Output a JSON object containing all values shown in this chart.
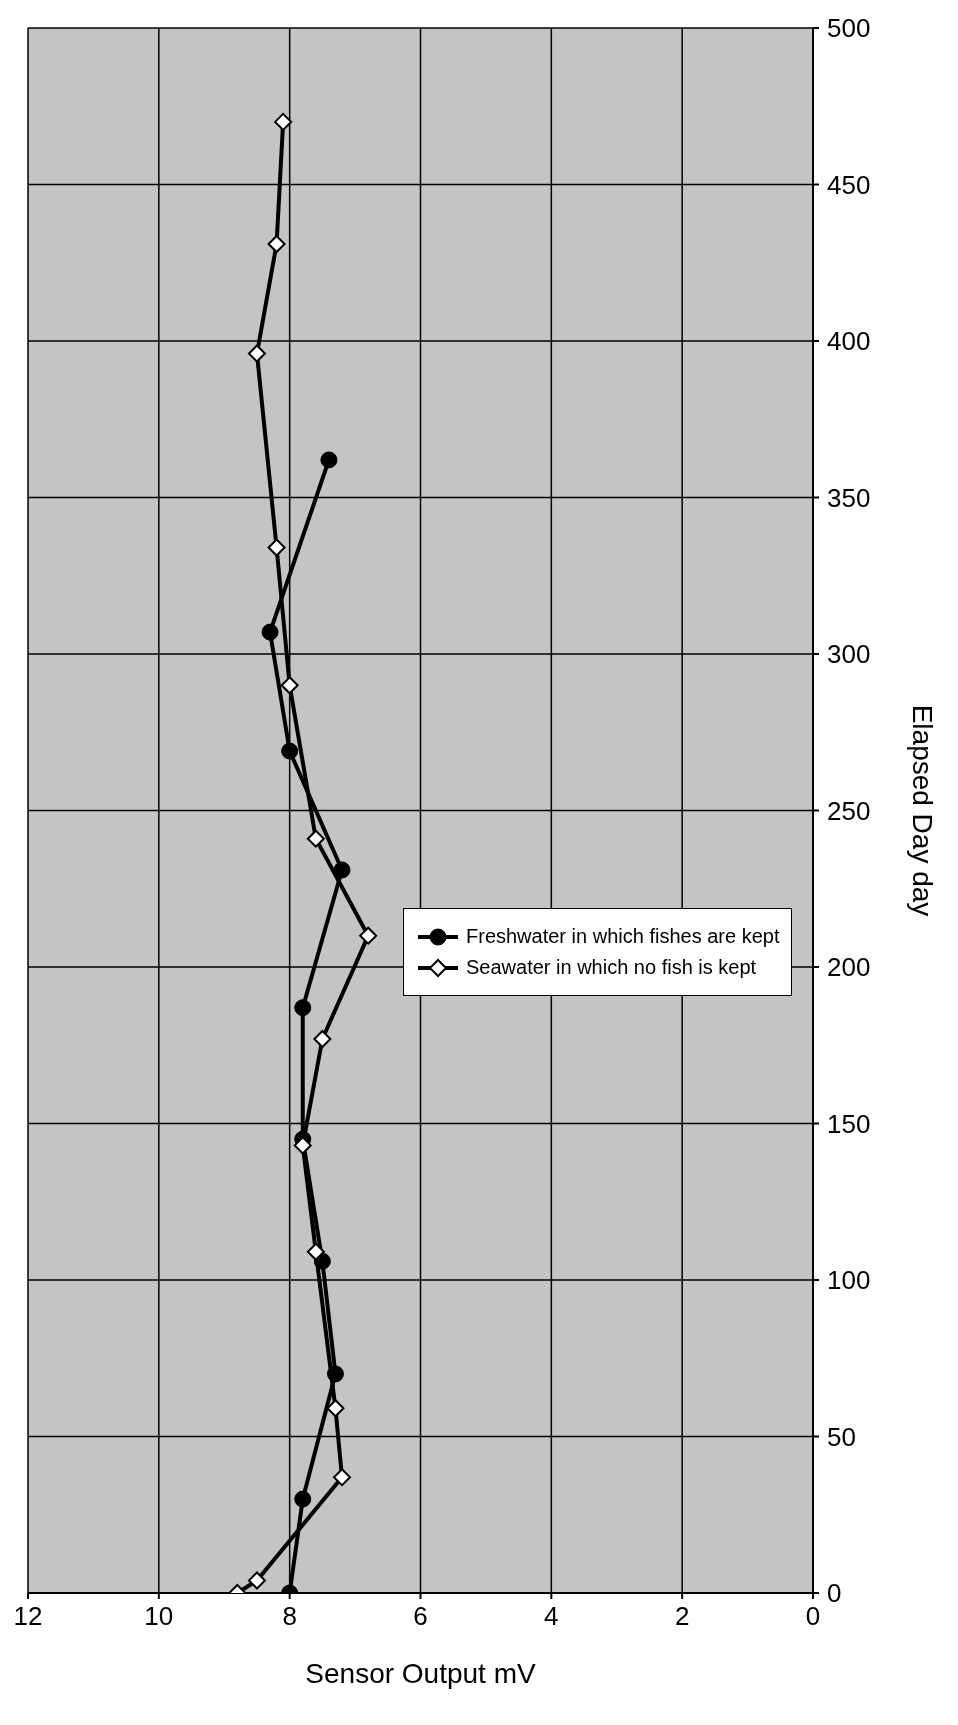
{
  "chart_data": {
    "type": "line",
    "xlabel": "Sensor Output    mV",
    "ylabel": "Elapsed Day    day",
    "xlim": [
      12,
      0
    ],
    "xticks": [
      12,
      10,
      8,
      6,
      4,
      2,
      0
    ],
    "ylim": [
      0,
      500
    ],
    "yticks": [
      0,
      50,
      100,
      150,
      200,
      250,
      300,
      350,
      400,
      450,
      500
    ],
    "grid": true,
    "legend": "right",
    "line_style": "solid",
    "series": [
      {
        "name": "Freshwater in which fishes are kept",
        "color": "#000000",
        "marker": "circle",
        "x": [
          8.0,
          7.8,
          7.3,
          7.5,
          7.8,
          7.8,
          7.2,
          8.0,
          8.3,
          7.4
        ],
        "values": [
          0,
          30,
          70,
          106,
          145,
          187,
          231,
          269,
          307,
          362
        ]
      },
      {
        "name": "Seawater in which no fish is kept",
        "color": "#000000",
        "marker": "diamond",
        "x": [
          8.8,
          8.5,
          7.2,
          7.3,
          7.6,
          7.8,
          7.5,
          6.8,
          7.6,
          8.0,
          8.2,
          8.5,
          8.2,
          8.1
        ],
        "values": [
          0,
          4,
          37,
          59,
          109,
          143,
          177,
          210,
          241,
          290,
          334,
          396,
          431,
          470
        ]
      }
    ]
  }
}
